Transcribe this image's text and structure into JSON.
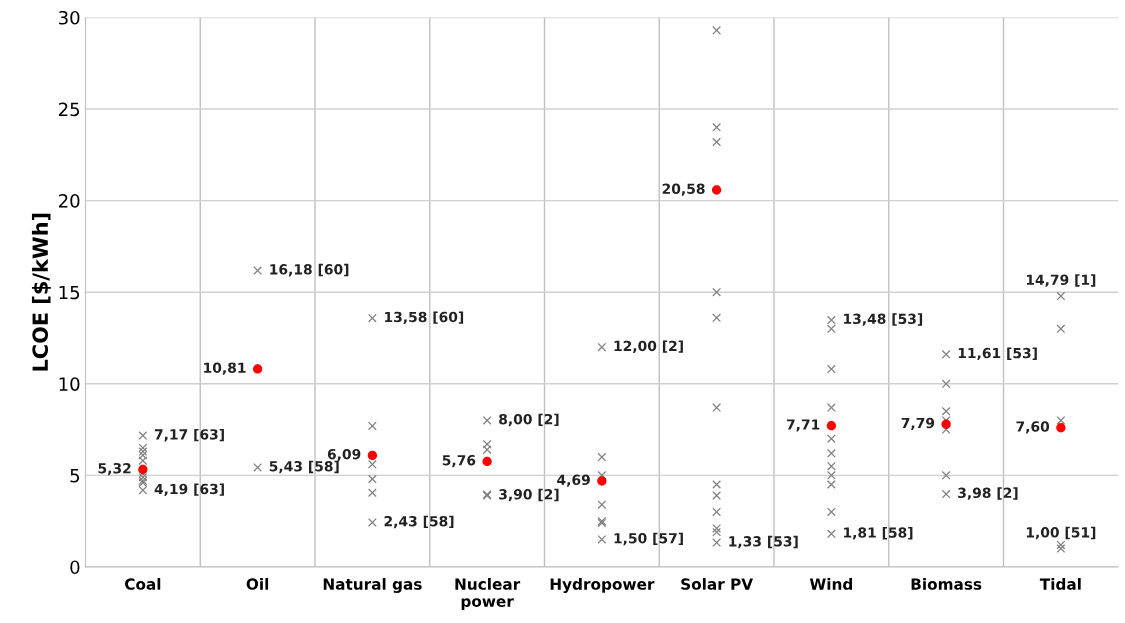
{
  "chart_data": {
    "type": "scatter",
    "ylabel": "LCOE [$/kWh]",
    "categories": [
      "Coal",
      "Oil",
      "Natural gas",
      "Nuclear\npower",
      "Hydropower",
      "Solar PV",
      "Wind",
      "Biomass",
      "Tidal"
    ],
    "ylim": [
      0,
      30
    ],
    "yticks": [
      0,
      5,
      10,
      15,
      20,
      25,
      30
    ],
    "grid": true,
    "series": [
      {
        "color": "#808080",
        "marker": "cross",
        "x": [
          "Coal",
          "Coal",
          "Coal",
          "Coal",
          "Coal",
          "Coal",
          "Coal",
          "Coal",
          "Coal",
          "Coal",
          "Oil",
          "Oil",
          "Natural gas",
          "Natural gas",
          "Natural gas",
          "Natural gas",
          "Natural gas",
          "Natural gas",
          "Nuclear\npower",
          "Nuclear\npower",
          "Nuclear\npower",
          "Nuclear\npower",
          "Nuclear\npower",
          "Hydropower",
          "Hydropower",
          "Hydropower",
          "Hydropower",
          "Hydropower",
          "Hydropower",
          "Hydropower",
          "Solar PV",
          "Solar PV",
          "Solar PV",
          "Solar PV",
          "Solar PV",
          "Solar PV",
          "Solar PV",
          "Solar PV",
          "Solar PV",
          "Solar PV",
          "Solar PV",
          "Solar PV",
          "Wind",
          "Wind",
          "Wind",
          "Wind",
          "Wind",
          "Wind",
          "Wind",
          "Wind",
          "Wind",
          "Wind",
          "Wind",
          "Biomass",
          "Biomass",
          "Biomass",
          "Biomass",
          "Biomass",
          "Biomass",
          "Biomass",
          "Tidal",
          "Tidal",
          "Tidal",
          "Tidal",
          "Tidal"
        ],
        "values": [
          7.17,
          6.5,
          6.3,
          6.1,
          5.8,
          5.1,
          4.9,
          4.7,
          4.6,
          4.19,
          16.18,
          5.43,
          13.58,
          7.7,
          5.6,
          4.8,
          4.05,
          2.43,
          8.0,
          6.7,
          6.4,
          3.95,
          3.9,
          12.0,
          6.0,
          5.0,
          3.4,
          2.5,
          2.4,
          1.5,
          29.3,
          24.0,
          23.2,
          15.0,
          13.6,
          8.7,
          4.5,
          3.9,
          3.0,
          2.1,
          1.9,
          1.33,
          13.48,
          13.0,
          10.8,
          8.7,
          7.0,
          6.2,
          5.5,
          5.0,
          4.5,
          3.0,
          1.81,
          11.61,
          10.0,
          8.5,
          8.0,
          7.5,
          5.0,
          3.98,
          14.79,
          13.0,
          8.0,
          1.2,
          1.0
        ],
        "value_labels": [
          "7,17 [63]",
          null,
          null,
          null,
          null,
          null,
          null,
          null,
          null,
          "4,19 [63]",
          "16,18 [60]",
          "5,43 [58]",
          "13,58 [60]",
          null,
          null,
          null,
          null,
          "2,43 [58]",
          "8,00 [2]",
          null,
          null,
          null,
          "3,90 [2]",
          "12,00 [2]",
          null,
          null,
          null,
          null,
          null,
          "1,50 [57]",
          null,
          null,
          null,
          null,
          null,
          null,
          null,
          null,
          null,
          null,
          null,
          "1,33 [53]",
          "13,48 [53]",
          null,
          null,
          null,
          null,
          null,
          null,
          null,
          null,
          null,
          "1,81 [58]",
          "11,61 [53]",
          null,
          null,
          null,
          null,
          null,
          "3,98 [2]",
          "14,79 [1]",
          null,
          null,
          null,
          "1,00 [51]"
        ]
      },
      {
        "color": "#ff0000",
        "marker": "circle",
        "x": [
          "Coal",
          "Oil",
          "Natural gas",
          "Nuclear\npower",
          "Hydropower",
          "Solar PV",
          "Wind",
          "Biomass",
          "Tidal"
        ],
        "values": [
          5.32,
          10.81,
          6.09,
          5.76,
          4.69,
          20.58,
          7.71,
          7.79,
          7.6
        ],
        "value_labels": [
          "5,32",
          "10,81",
          "6,09",
          "5,76",
          "4,69",
          "20,58",
          "7,71",
          "7,79",
          "7,60"
        ]
      }
    ]
  }
}
